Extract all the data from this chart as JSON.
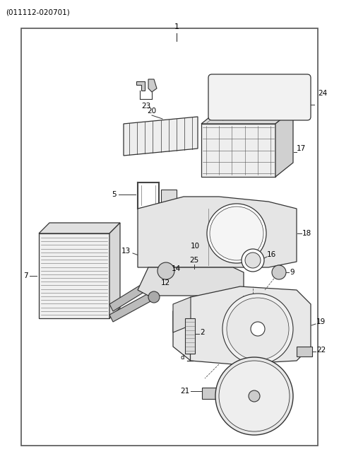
{
  "title": "(011112-020701)",
  "background_color": "#ffffff",
  "border_color": "#555555",
  "line_color": "#333333",
  "fig_width": 4.8,
  "fig_height": 6.56,
  "dpi": 100
}
